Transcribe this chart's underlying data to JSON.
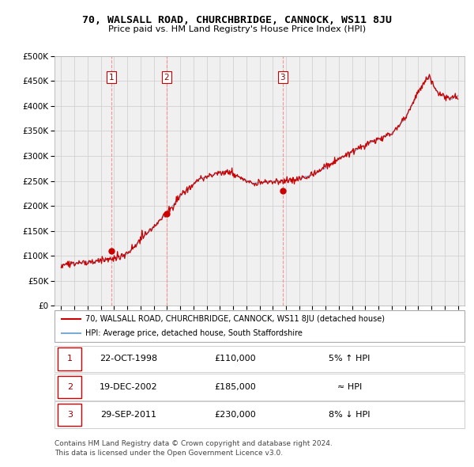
{
  "title": "70, WALSALL ROAD, CHURCHBRIDGE, CANNOCK, WS11 8JU",
  "subtitle": "Price paid vs. HM Land Registry's House Price Index (HPI)",
  "ymin": 0,
  "ymax": 500000,
  "yticks": [
    0,
    50000,
    100000,
    150000,
    200000,
    250000,
    300000,
    350000,
    400000,
    450000,
    500000
  ],
  "ytick_labels": [
    "£0",
    "£50K",
    "£100K",
    "£150K",
    "£200K",
    "£250K",
    "£300K",
    "£350K",
    "£400K",
    "£450K",
    "£500K"
  ],
  "sales": [
    {
      "num": 1,
      "date": "22-OCT-1998",
      "price": 110000,
      "year": 1998.81,
      "hpi_rel": "5% ↑ HPI"
    },
    {
      "num": 2,
      "date": "19-DEC-2002",
      "price": 185000,
      "year": 2002.97,
      "hpi_rel": "≈ HPI"
    },
    {
      "num": 3,
      "date": "29-SEP-2011",
      "price": 230000,
      "year": 2011.75,
      "hpi_rel": "8% ↓ HPI"
    }
  ],
  "hpi_line_color": "#7aadd4",
  "price_line_color": "#cc0000",
  "sale_dot_color": "#cc0000",
  "vline_color": "#ff8888",
  "grid_color": "#cccccc",
  "bg_color": "#f0f0f0",
  "legend_label_red": "70, WALSALL ROAD, CHURCHBRIDGE, CANNOCK, WS11 8JU (detached house)",
  "legend_label_blue": "HPI: Average price, detached house, South Staffordshire",
  "footer": "Contains HM Land Registry data © Crown copyright and database right 2024.\nThis data is licensed under the Open Government Licence v3.0.",
  "xmin": 1994.5,
  "xmax": 2025.5,
  "hpi_knots_x": [
    1995.0,
    1998.0,
    1999.0,
    2000.0,
    2001.5,
    2002.97,
    2004.0,
    2005.5,
    2007.5,
    2008.7,
    2009.5,
    2010.5,
    2011.75,
    2012.5,
    2013.5,
    2014.5,
    2016.0,
    2017.5,
    2019.0,
    2020.0,
    2021.0,
    2022.0,
    2022.8,
    2023.5,
    2024.5,
    2025.0
  ],
  "hpi_knots_y": [
    82000,
    90000,
    95000,
    105000,
    145000,
    185000,
    220000,
    255000,
    270000,
    255000,
    245000,
    248000,
    250000,
    252000,
    258000,
    268000,
    295000,
    315000,
    335000,
    345000,
    375000,
    430000,
    460000,
    425000,
    415000,
    420000
  ]
}
